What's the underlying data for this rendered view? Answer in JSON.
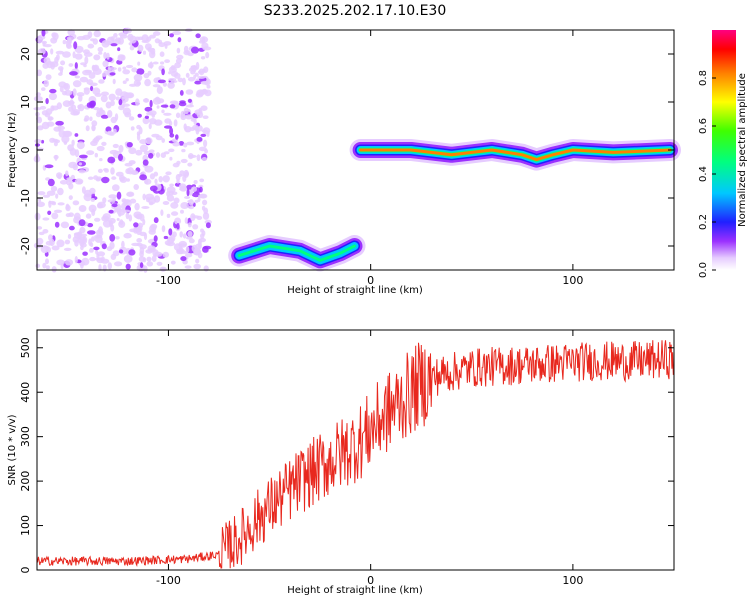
{
  "title": "S233.2025.202.17.10.E30",
  "chart_data": [
    {
      "type": "heatmap",
      "xlabel": "Height of straight line (km)",
      "ylabel": "Frequency (Hz)",
      "xlim": [
        -165,
        150
      ],
      "ylim": [
        -25,
        25
      ],
      "xticks": [
        -100,
        0,
        100
      ],
      "yticks": [
        -20,
        -10,
        0,
        10,
        20
      ],
      "colorbar": {
        "label": "Normalized spectral amplitude",
        "range": [
          0,
          1
        ],
        "ticks": [
          0.0,
          0.2,
          0.4,
          0.6,
          0.8
        ]
      },
      "features": [
        {
          "description": "scattered noise",
          "x_range": [
            -165,
            -80
          ],
          "y_range": [
            -25,
            25
          ],
          "level": 0.15
        },
        {
          "description": "band",
          "points": [
            [
              -65,
              -22
            ],
            [
              -50,
              -20
            ],
            [
              -35,
              -21
            ],
            [
              -25,
              -23
            ],
            [
              -15,
              -21.5
            ],
            [
              -8,
              -20
            ]
          ],
          "level": 0.45
        },
        {
          "description": "band",
          "points": [
            [
              -5,
              0
            ],
            [
              20,
              0
            ],
            [
              40,
              -1
            ],
            [
              60,
              0
            ],
            [
              75,
              -1
            ],
            [
              82,
              -2
            ],
            [
              90,
              -1
            ],
            [
              100,
              0
            ],
            [
              120,
              -0.5
            ],
            [
              148,
              0
            ]
          ],
          "level": 0.9
        }
      ]
    },
    {
      "type": "line",
      "xlabel": "Height of straight line (km)",
      "ylabel": "SNR (10 * v/v)",
      "xlim": [
        -165,
        150
      ],
      "ylim": [
        0,
        540
      ],
      "xticks": [
        -100,
        0,
        100
      ],
      "yticks": [
        0,
        100,
        200,
        300,
        400,
        500
      ],
      "color": "#e8281e",
      "trend": {
        "x": [
          -165,
          -120,
          -90,
          -75,
          -65,
          -55,
          -45,
          -35,
          -25,
          -15,
          -5,
          5,
          15,
          25,
          35,
          50,
          70,
          90,
          110,
          130,
          150
        ],
        "y": [
          20,
          20,
          25,
          35,
          70,
          120,
          160,
          200,
          230,
          260,
          290,
          340,
          380,
          420,
          440,
          455,
          460,
          465,
          470,
          470,
          475
        ]
      }
    }
  ]
}
